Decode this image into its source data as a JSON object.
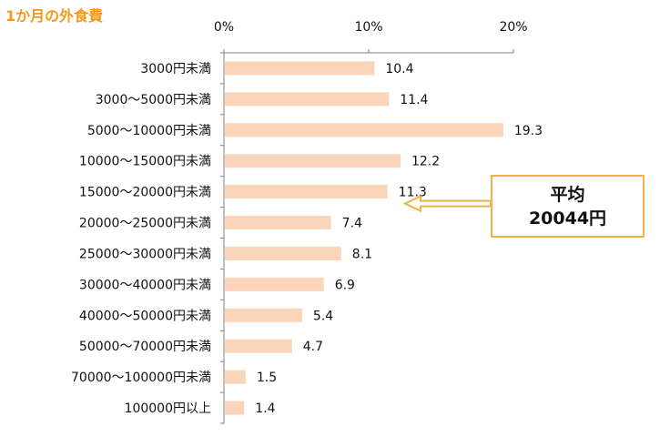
{
  "colors": {
    "title": "#f39a1e",
    "bar": "#fbd5b9",
    "axis": "#808080",
    "gridline": "#d9d9d9",
    "callout_border": "#f6b04a",
    "arrow": "#f6b04a"
  },
  "chart_data": {
    "type": "bar",
    "orientation": "horizontal",
    "title": "1か月の外食費",
    "xlabel": "",
    "ylabel": "",
    "xlim": [
      0,
      20
    ],
    "xticks": [
      0,
      10,
      20
    ],
    "xtick_labels": [
      "0%",
      "10%",
      "20%"
    ],
    "grid": false,
    "categories": [
      "3000円未満",
      "3000～5000円未満",
      "5000～10000円未満",
      "10000～15000円未満",
      "15000～20000円未満",
      "20000～25000円未満",
      "25000～30000円未満",
      "30000～40000円未満",
      "40000～50000円未満",
      "50000～70000円未満",
      "70000～100000円未満",
      "100000円以上"
    ],
    "values": [
      10.4,
      11.4,
      19.3,
      12.2,
      11.3,
      7.4,
      8.1,
      6.9,
      5.4,
      4.7,
      1.5,
      1.4
    ],
    "data_labels": [
      "10.4",
      "11.4",
      "19.3",
      "12.2",
      "11.3",
      "7.4",
      "8.1",
      "6.9",
      "5.4",
      "4.7",
      "1.5",
      "1.4"
    ],
    "annotation": {
      "line1": "平均",
      "line2": "20044円",
      "points_to_category": "15000～20000円未満"
    }
  }
}
